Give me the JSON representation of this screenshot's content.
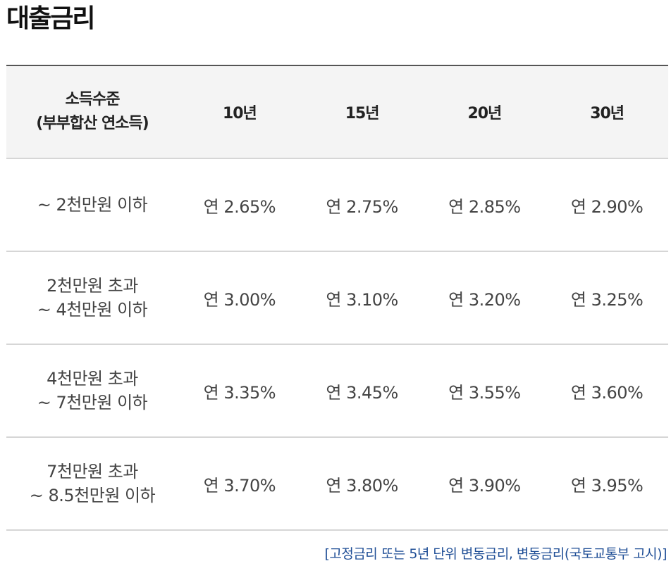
{
  "title": "대출금리",
  "table": {
    "header": {
      "income_line1": "소득수준",
      "income_line2": "(부부합산 연소득)",
      "terms": [
        "10년",
        "15년",
        "20년",
        "30년"
      ]
    },
    "rows": [
      {
        "income_line1": "~ 2천만원 이하",
        "income_line2": "",
        "rates": [
          "연 2.65%",
          "연 2.75%",
          "연 2.85%",
          "연 2.90%"
        ]
      },
      {
        "income_line1": "2천만원 초과",
        "income_line2": "~ 4천만원 이하",
        "rates": [
          "연 3.00%",
          "연 3.10%",
          "연 3.20%",
          "연 3.25%"
        ]
      },
      {
        "income_line1": "4천만원 초과",
        "income_line2": "~ 7천만원 이하",
        "rates": [
          "연 3.35%",
          "연 3.45%",
          "연 3.55%",
          "연 3.60%"
        ]
      },
      {
        "income_line1": "7천만원 초과",
        "income_line2": "~ 8.5천만원 이하",
        "rates": [
          "연 3.70%",
          "연 3.80%",
          "연 3.90%",
          "연 3.95%"
        ]
      }
    ]
  },
  "footnote": "[고정금리 또는 5년 단위 변동금리, 변동금리(국토교통부 고시)]",
  "colors": {
    "header_bg": "#f4f4f4",
    "footnote": "#1f4e96",
    "title": "#111111"
  }
}
